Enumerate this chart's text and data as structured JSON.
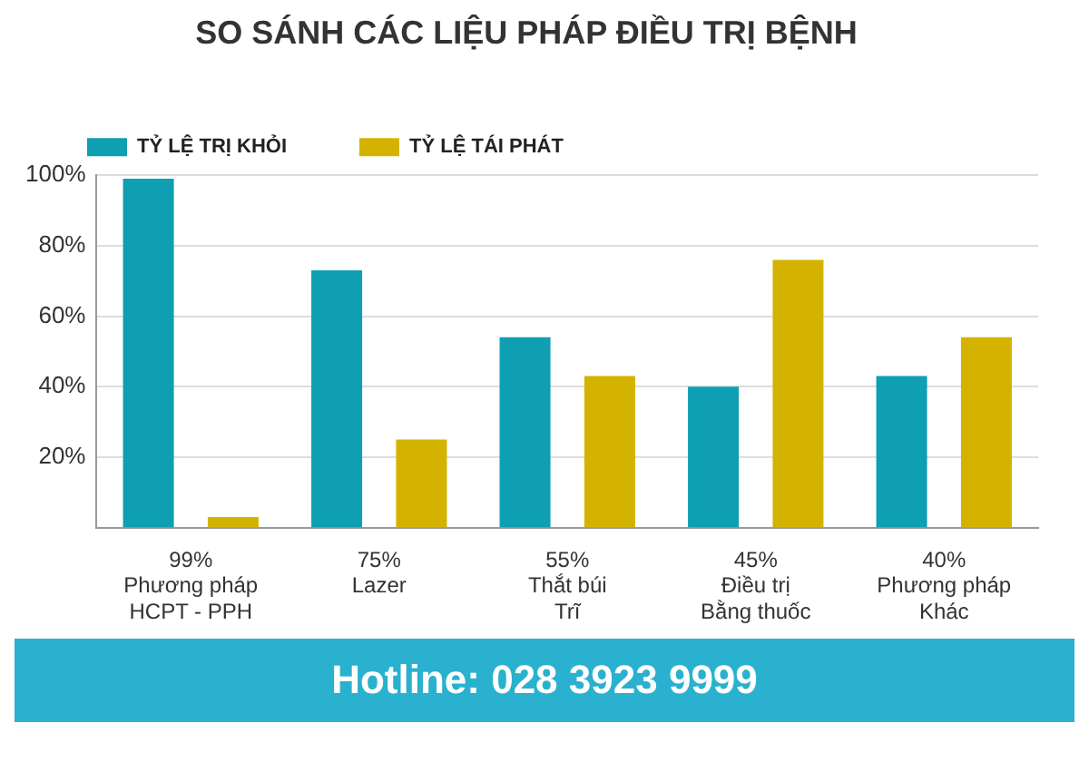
{
  "chart_data": {
    "type": "bar",
    "title": "SO SÁNH CÁC LIỆU PHÁP ĐIỀU TRỊ BỆNH",
    "categories": [
      "99%\nPhương pháp\nHCPT - PPH",
      "75%\nLazer",
      "55%\nThắt búi\nTrĩ",
      "45%\nĐiều trị\nBằng thuốc",
      "40%\nPhương pháp\nKhác"
    ],
    "series": [
      {
        "name": "TỶ LỆ TRỊ KHỎI",
        "color": "#0e9fb3",
        "values": [
          99,
          73,
          54,
          40,
          43
        ]
      },
      {
        "name": "TỶ LỆ TÁI PHÁT",
        "color": "#d4b300",
        "values": [
          3,
          25,
          43,
          76,
          54
        ]
      }
    ],
    "ylim": [
      0,
      100
    ],
    "yticks": [
      {
        "value": 20,
        "label": "20%"
      },
      {
        "value": 40,
        "label": "40%"
      },
      {
        "value": 60,
        "label": "60%"
      },
      {
        "value": 80,
        "label": "80%"
      },
      {
        "value": 100,
        "label": "100%"
      }
    ],
    "grid": "y",
    "legend": "top left",
    "annotations": [
      "Hotline: 028 3923 9999"
    ]
  }
}
